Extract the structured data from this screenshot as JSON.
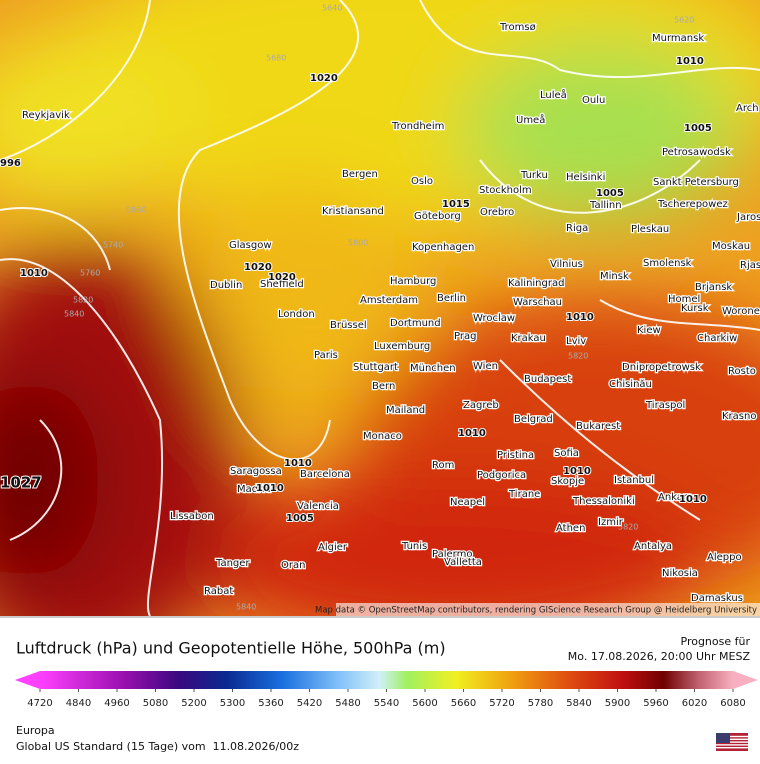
{
  "map": {
    "cities": [
      "Reykjavik",
      "Tromsø",
      "Murmansk",
      "Luleå",
      "Oulu",
      "Umeå",
      "Trondheim",
      "Petrosawodsk",
      "Arch",
      "Bergen",
      "Oslo",
      "Stockholm",
      "Turku",
      "Helsinki",
      "Sankt Petersburg",
      "Kristiansand",
      "Göteborg",
      "Orebro",
      "Tallinn",
      "Tscherepowez",
      "Jaros",
      "Riga",
      "Pleskau",
      "Glasgow",
      "Kopenhagen",
      "Moskau",
      "Vilnius",
      "Smolensk",
      "Rjas",
      "Dublin",
      "Sheffield",
      "Hamburg",
      "Kaliningrad",
      "Minsk",
      "Brjansk",
      "Amsterdam",
      "Berlin",
      "Warschau",
      "Homel",
      "London",
      "Brüssel",
      "Dortmund",
      "Wroclaw",
      "Kursk",
      "Worone",
      "Prag",
      "Krakau",
      "Kiew",
      "Luxemburg",
      "Lviv",
      "Charkiw",
      "Paris",
      "Stuttgart",
      "München",
      "Wien",
      "Dnipropetrowsk",
      "Rosto",
      "Chisinău",
      "Bern",
      "Budapest",
      "Mailand",
      "Zagreb",
      "Tiraspol",
      "Krasno",
      "Monaco",
      "Belgrad",
      "Bukarest",
      "Pristina",
      "Sofia",
      "Saragossa",
      "Barcelona",
      "Rom",
      "Podgorica",
      "Skopje",
      "Istanbul",
      "Madrid",
      "Neapel",
      "Tirane",
      "Thessaloniki",
      "Ankara",
      "Valencia",
      "Lissabon",
      "Izmir",
      "Athen",
      "Palermo",
      "Algier",
      "Tunis",
      "Antalya",
      "Valletta",
      "Tanger",
      "Oran",
      "Nikosia",
      "Aleppo",
      "Rabat",
      "Damaskus"
    ],
    "isobar_labels": [
      "1010",
      "1020",
      "996",
      "1005",
      "1015",
      "1005",
      "1010",
      "1020",
      "1020",
      "1010",
      "1010",
      "1010",
      "1010",
      "1027",
      "1010",
      "1010",
      "1005"
    ],
    "height_labels": [
      "5640",
      "5620",
      "5680",
      "5860",
      "5740",
      "5760",
      "5820",
      "5840",
      "5800",
      "5820",
      "5860",
      "5820",
      "5840"
    ],
    "attribution": "Map data © OpenStreetMap contributors, rendering GIScience Research Group @ Heidelberg University"
  },
  "header": {
    "title": "Luftdruck (hPa) und Geopotentielle Höhe, 500hPa (m)",
    "forecast_label": "Prognose für",
    "forecast_time": "Mo. 17.08.2026, 20:00 Uhr MESZ"
  },
  "colorbar": {
    "ticks": [
      4720,
      4840,
      4960,
      5080,
      5200,
      5300,
      5360,
      5420,
      5480,
      5540,
      5600,
      5660,
      5720,
      5780,
      5840,
      5900,
      5960,
      6020,
      6080
    ]
  },
  "footer": {
    "region": "Europa",
    "model": "Global US Standard (15 Tage) vom  11.08.2026/00z"
  }
}
